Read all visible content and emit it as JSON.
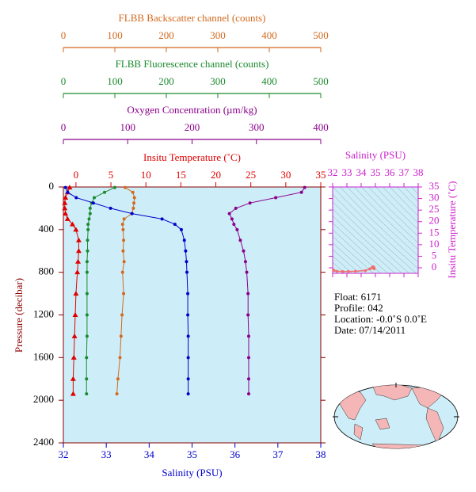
{
  "chart_data": [
    {
      "type": "profile",
      "y_label": "Pressure (decibar)",
      "ylim": [
        0,
        2400
      ],
      "yticks": [
        0,
        400,
        800,
        1200,
        1600,
        2000,
        2400
      ],
      "y_inverted": true,
      "pressure": [
        5,
        50,
        100,
        150,
        200,
        250,
        300,
        350,
        400,
        500,
        600,
        700,
        800,
        1000,
        1200,
        1400,
        1600,
        1800,
        1940
      ],
      "x_axes": [
        {
          "label": "FLBB Backscatter channel (counts)",
          "color": "#d2691e",
          "position": "top",
          "marker": "circle",
          "xlim": [
            0,
            500
          ],
          "xticks": [
            0,
            100,
            200,
            300,
            400,
            500
          ],
          "values": [
            120,
            135,
            138,
            137,
            136,
            133,
            118,
            115,
            116,
            117,
            116,
            118,
            115,
            117,
            114,
            112,
            110,
            106,
            104
          ]
        },
        {
          "label": "FLBB Fluorescence channel (counts)",
          "color": "#1a8a2e",
          "position": "top",
          "marker": "circle",
          "xlim": [
            0,
            500
          ],
          "xticks": [
            0,
            100,
            200,
            300,
            400,
            500
          ],
          "values": [
            100,
            80,
            60,
            55,
            52,
            52,
            50,
            48,
            48,
            47,
            47,
            46,
            46,
            46,
            46,
            46,
            45,
            45,
            45
          ]
        },
        {
          "label": "Oxygen Concentration (µm/kg)",
          "color": "#8b008b",
          "position": "top",
          "marker": "circle",
          "xlim": [
            0,
            400
          ],
          "xticks": [
            0,
            100,
            200,
            300,
            400
          ],
          "values": [
            375,
            370,
            330,
            290,
            268,
            258,
            262,
            265,
            270,
            275,
            280,
            283,
            285,
            287,
            287,
            288,
            288,
            288,
            288
          ]
        },
        {
          "label": "Insitu Temperature (˚C)",
          "color": "#e00000",
          "position": "top",
          "marker": "triangle",
          "xlim": [
            -1.8,
            35
          ],
          "xticks": [
            0,
            5,
            10,
            15,
            20,
            25,
            30,
            35
          ],
          "values": [
            -0.9,
            -1.2,
            -1.5,
            -1.6,
            -1.6,
            -1.5,
            -1.2,
            -0.5,
            0.0,
            0.4,
            0.4,
            0.3,
            0.2,
            0.0,
            -0.1,
            -0.2,
            -0.3,
            -0.4,
            -0.4
          ]
        },
        {
          "label": "Salinity (PSU)",
          "color": "#0000cc",
          "position": "bottom",
          "marker": "circle",
          "xlim": [
            32,
            38
          ],
          "xticks": [
            32,
            33,
            34,
            35,
            36,
            37,
            38
          ],
          "values": [
            32.05,
            32.1,
            32.3,
            32.7,
            33.1,
            33.6,
            34.3,
            34.6,
            34.75,
            34.82,
            34.85,
            34.87,
            34.88,
            34.9,
            34.9,
            34.91,
            34.91,
            34.91,
            34.91
          ]
        }
      ]
    },
    {
      "type": "ts",
      "x_label": "Salinity (PSU)",
      "y_label": "Insitu Temperature (˚C)",
      "x_color": "#cc22cc",
      "y_color": "#cc22cc",
      "color": "#f07070",
      "xlim": [
        32,
        38
      ],
      "xticks": [
        32,
        33,
        34,
        35,
        36,
        37,
        38
      ],
      "ylim": [
        -2.4,
        35
      ],
      "yticks": [
        0,
        5,
        10,
        15,
        20,
        25,
        30,
        35
      ]
    }
  ],
  "float_info": {
    "lines": [
      "Float:  6171",
      "Profile:  042",
      "Location:  -0.0˚S   0.0˚E",
      "Date:  07/14/2011"
    ]
  }
}
